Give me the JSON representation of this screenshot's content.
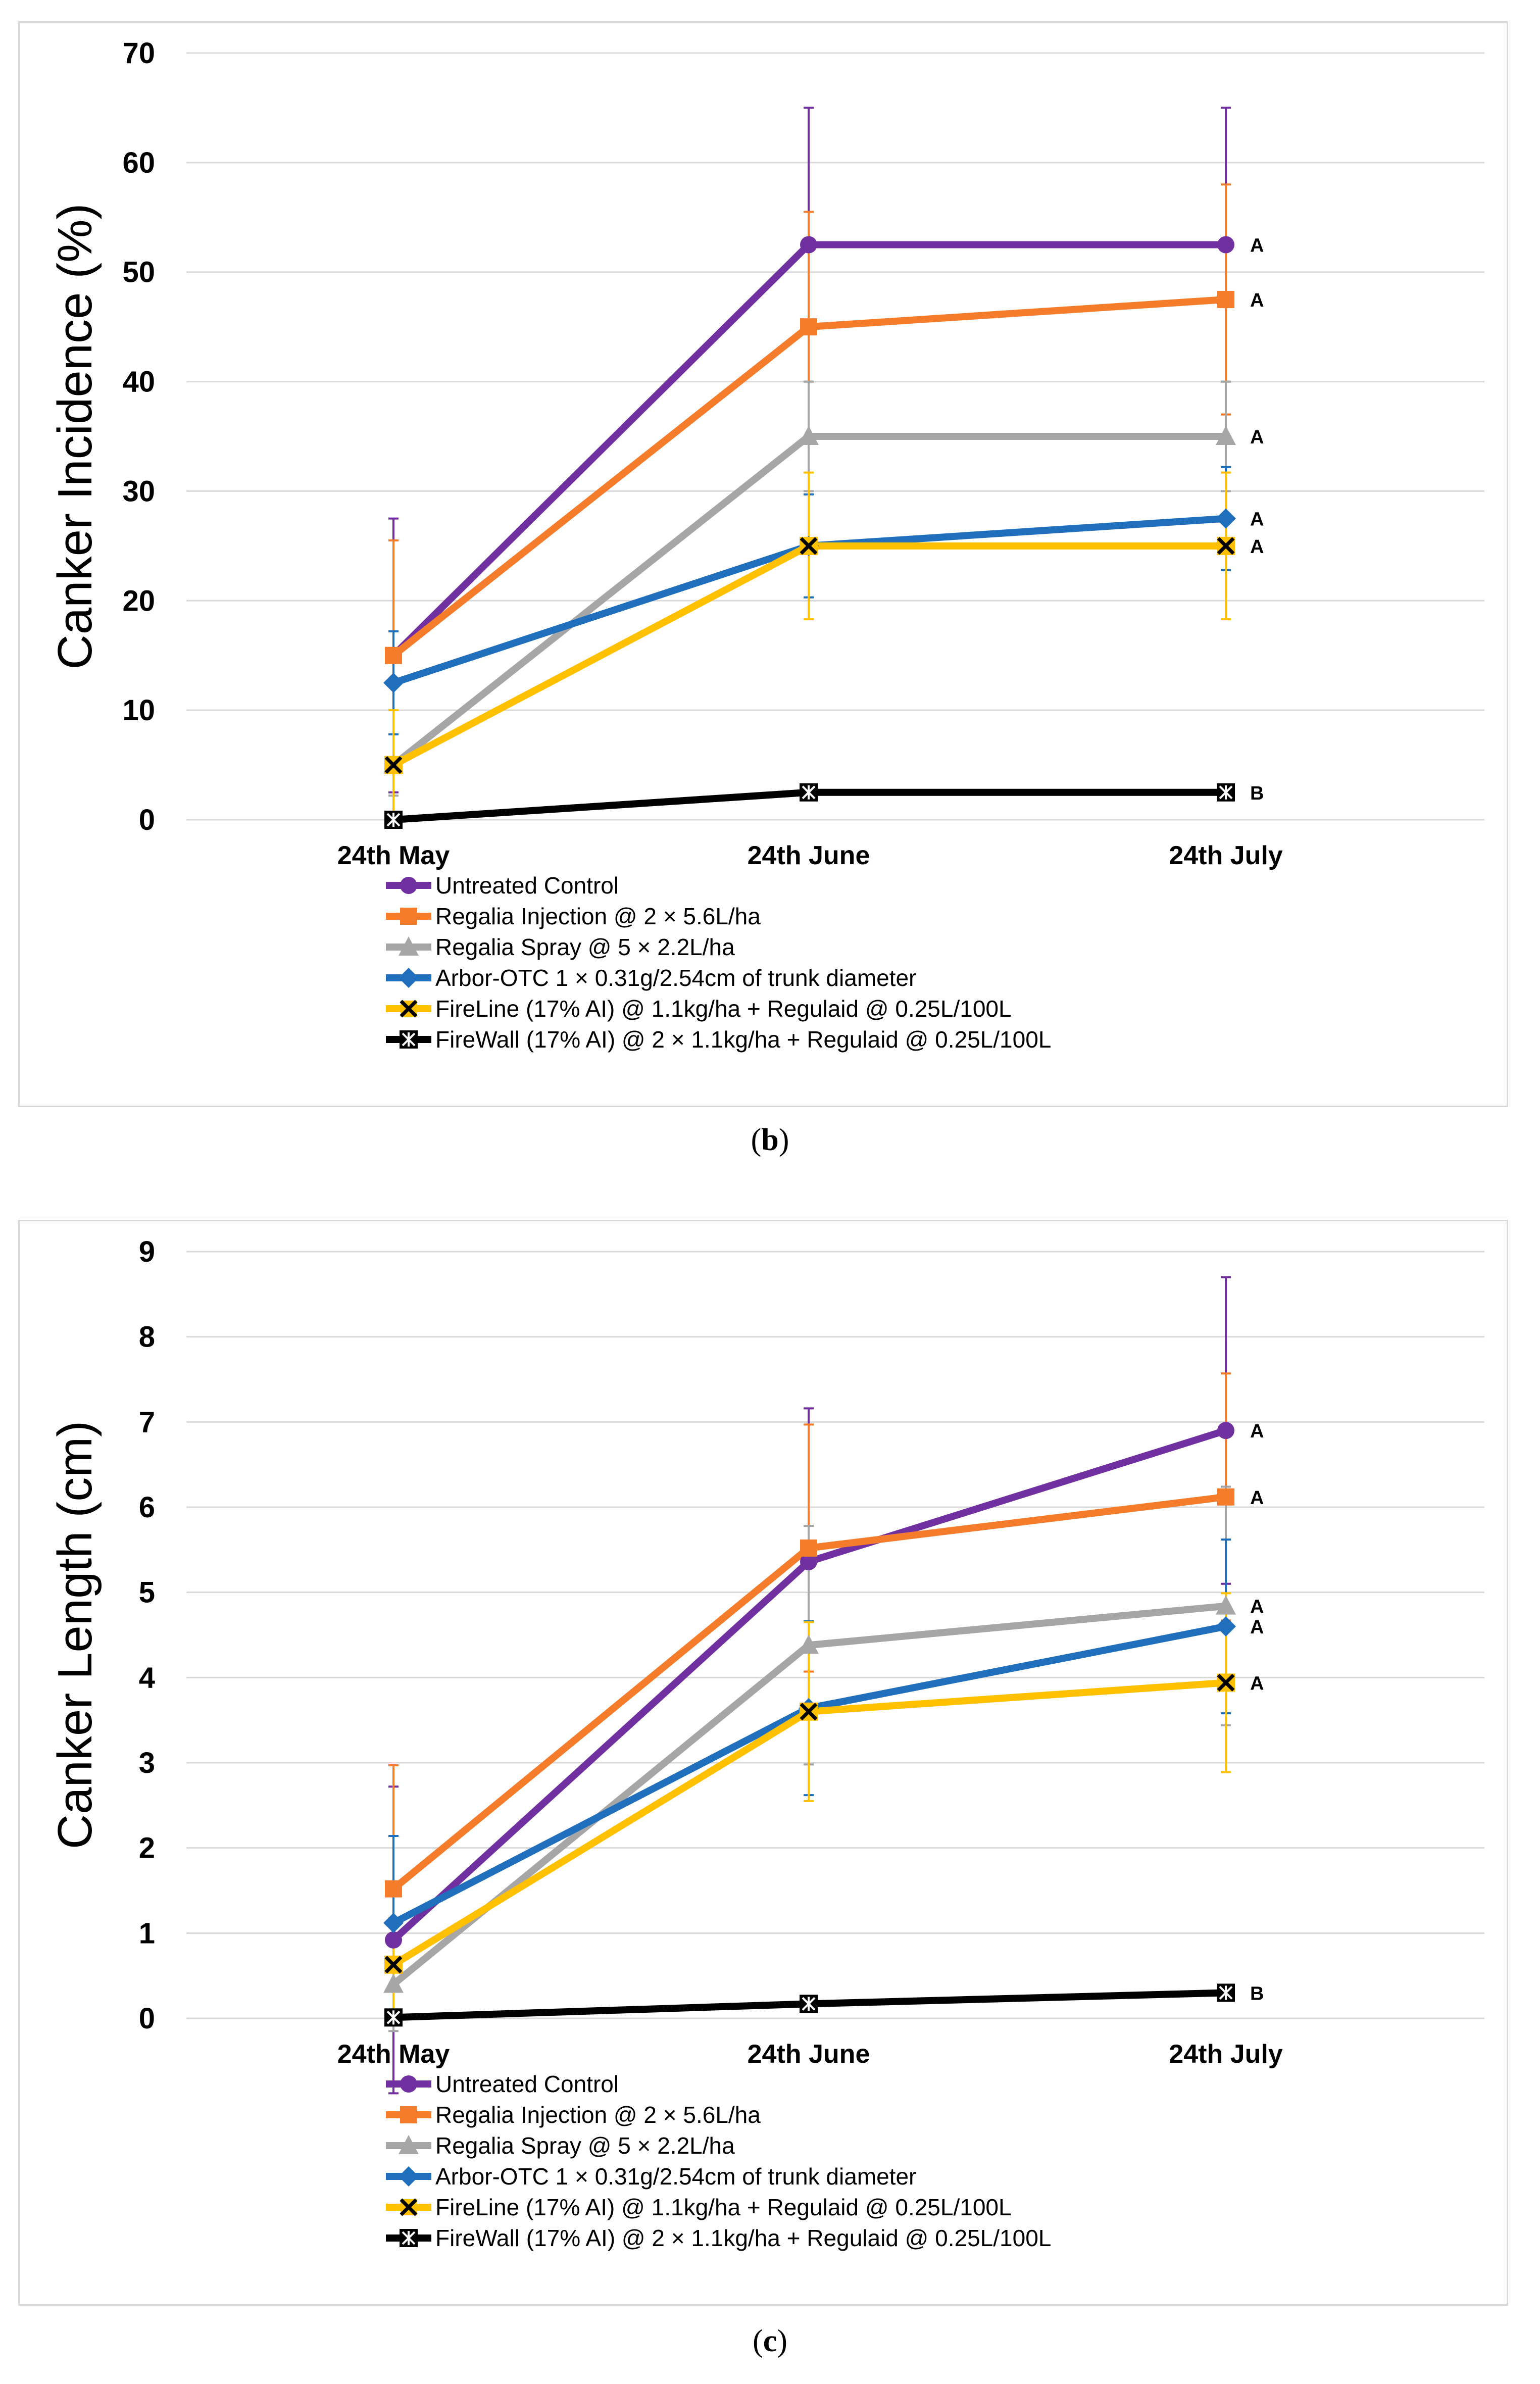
{
  "captions": [
    {
      "pre": "(",
      "letter": "b",
      "post": ")"
    },
    {
      "pre": "(",
      "letter": "c",
      "post": ")"
    }
  ],
  "chart_data": [
    {
      "type": "line",
      "panel": "b",
      "title": "",
      "ylabel": "Canker Incidence (%)",
      "xlabel": "",
      "ylim": [
        0,
        70
      ],
      "yticks": [
        0,
        10,
        20,
        30,
        40,
        50,
        60,
        70
      ],
      "categories": [
        "24th May",
        "24th June",
        "24th July"
      ],
      "grid": true,
      "legend_position": "bottom",
      "series": [
        {
          "name": "Untreated Control",
          "color": "#7030a0",
          "marker": "circle",
          "values": [
            15,
            52.5,
            52.5
          ],
          "errors": [
            12.5,
            12.5,
            12.5
          ],
          "sig": "A"
        },
        {
          "name": "Regalia Injection @ 2 × 5.6L/ha",
          "color": "#f47c2a",
          "marker": "square",
          "values": [
            15,
            45,
            47.5
          ],
          "errors": [
            10.5,
            10.5,
            10.5
          ],
          "sig": "A"
        },
        {
          "name": "Regalia Spray @ 5 × 2.2L/ha",
          "color": "#a6a6a6",
          "marker": "triangle",
          "values": [
            5,
            35,
            35
          ],
          "errors": [
            2.8,
            5,
            5
          ],
          "sig": "A"
        },
        {
          "name": "Arbor-OTC 1 × 0.31g/2.54cm of trunk diameter",
          "color": "#1f6fbd",
          "marker": "diamond",
          "values": [
            12.5,
            25,
            27.5
          ],
          "errors": [
            4.7,
            4.7,
            4.7
          ],
          "sig": "A"
        },
        {
          "name": "FireLine (17% AI) @ 1.1kg/ha + Regulaid @ 0.25L/100L",
          "color": "#ffc000",
          "marker": "x",
          "values": [
            5,
            25,
            25
          ],
          "errors": [
            5,
            6.7,
            6.7
          ],
          "sig": "A"
        },
        {
          "name": "FireWall (17% AI) @ 2 × 1.1kg/ha + Regulaid @ 0.25L/100L",
          "color": "#000000",
          "marker": "xstar",
          "values": [
            0,
            2.5,
            2.5
          ],
          "errors": [
            0,
            0,
            0
          ],
          "sig": "B"
        }
      ]
    },
    {
      "type": "line",
      "panel": "c",
      "title": "",
      "ylabel": "Canker Length (cm)",
      "xlabel": "",
      "ylim": [
        0,
        9
      ],
      "yticks": [
        0,
        1,
        2,
        3,
        4,
        5,
        6,
        7,
        8,
        9
      ],
      "categories": [
        "24th May",
        "24th June",
        "24th July"
      ],
      "grid": true,
      "legend_position": "bottom",
      "series": [
        {
          "name": "Untreated Control",
          "color": "#7030a0",
          "marker": "circle",
          "values": [
            0.92,
            5.36,
            6.9
          ],
          "errors": [
            1.8,
            1.8,
            1.8
          ],
          "sig": "A"
        },
        {
          "name": "Regalia Injection @ 2 × 5.6L/ha",
          "color": "#f47c2a",
          "marker": "square",
          "values": [
            1.52,
            5.52,
            6.12
          ],
          "errors": [
            1.45,
            1.45,
            1.45
          ],
          "sig": "A"
        },
        {
          "name": "Regalia Spray @ 5 × 2.2L/ha",
          "color": "#a6a6a6",
          "marker": "triangle",
          "values": [
            0.4,
            4.38,
            4.84
          ],
          "errors": [
            0.55,
            1.4,
            1.4
          ],
          "sig": "A"
        },
        {
          "name": "Arbor-OTC 1 × 0.31g/2.54cm of trunk diameter",
          "color": "#1f6fbd",
          "marker": "diamond",
          "values": [
            1.12,
            3.64,
            4.6
          ],
          "errors": [
            1.02,
            1.02,
            1.02
          ],
          "sig": "A"
        },
        {
          "name": "FireLine (17% AI) @ 1.1kg/ha + Regulaid @ 0.25L/100L",
          "color": "#ffc000",
          "marker": "x",
          "values": [
            0.63,
            3.6,
            3.94
          ],
          "errors": [
            0.55,
            1.05,
            1.05
          ],
          "sig": "A"
        },
        {
          "name": "FireWall (17% AI) @ 2 × 1.1kg/ha + Regulaid @ 0.25L/100L",
          "color": "#000000",
          "marker": "xstar",
          "values": [
            0.01,
            0.17,
            0.3
          ],
          "errors": [
            0,
            0,
            0
          ],
          "sig": "B"
        }
      ]
    }
  ]
}
